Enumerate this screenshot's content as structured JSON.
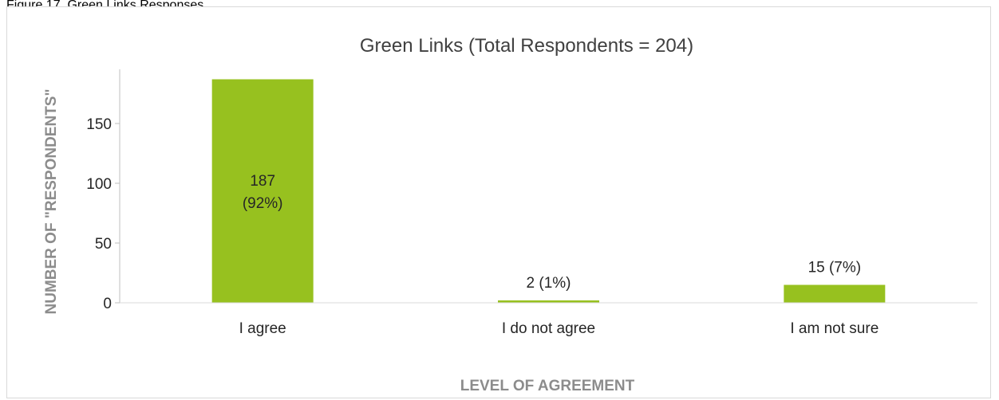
{
  "caption": "Figure 17. Green Links Responses",
  "chart_data": {
    "type": "bar",
    "title": "Green Links (Total Respondents = 204)",
    "xlabel": "LEVEL OF AGREEMENT",
    "ylabel": "NUMBER  OF \"RESPONDENTS\"",
    "categories": [
      "I agree",
      "I do not agree",
      "I am not sure"
    ],
    "values": [
      187,
      2,
      15
    ],
    "data_labels": [
      [
        "187",
        "(92%)"
      ],
      [
        "2 (1%)"
      ],
      [
        "15 (7%)"
      ]
    ],
    "yticks": [
      0,
      50,
      100,
      150
    ],
    "ylim": [
      0,
      190
    ],
    "bar_color": "#97c11f",
    "grid": false,
    "legend": "none"
  }
}
